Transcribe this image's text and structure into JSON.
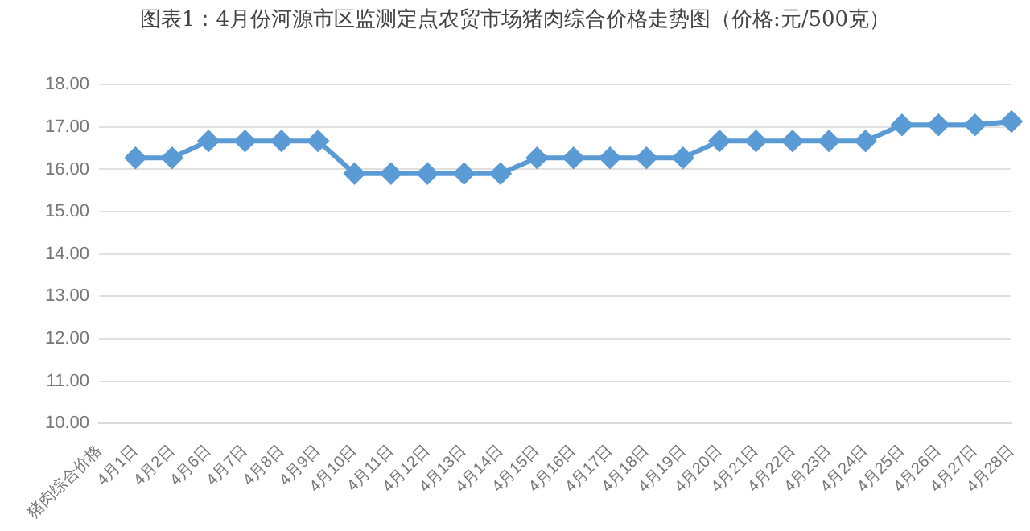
{
  "chart_data": {
    "type": "line",
    "title": "图表1：4月份河源市区监测定点农贸市场猪肉综合价格走势图（价格:元/500克）",
    "categories": [
      "猪肉综合价格",
      "4月1日",
      "4月2日",
      "4月6日",
      "4月7日",
      "4月8日",
      "4月9日",
      "4月10日",
      "4月11日",
      "4月12日",
      "4月13日",
      "4月14日",
      "4月15日",
      "4月16日",
      "4月17日",
      "4月18日",
      "4月19日",
      "4月20日",
      "4月21日",
      "4月22日",
      "4月23日",
      "4月24日",
      "4月25日",
      "4月26日",
      "4月27日",
      "4月28日"
    ],
    "series": [
      {
        "color": "#5b9bd5",
        "values": [
          null,
          16.27,
          16.27,
          16.67,
          16.67,
          16.67,
          16.67,
          15.9,
          15.9,
          15.9,
          15.9,
          15.9,
          16.27,
          16.27,
          16.27,
          16.27,
          16.27,
          16.67,
          16.67,
          16.67,
          16.67,
          16.67,
          17.05,
          17.05,
          17.05,
          17.13
        ]
      }
    ],
    "ylim": [
      10,
      18
    ],
    "yticks": [
      {
        "value": 10,
        "label": "10.00"
      },
      {
        "value": 11,
        "label": "11.00"
      },
      {
        "value": 12,
        "label": "12.00"
      },
      {
        "value": 13,
        "label": "13.00"
      },
      {
        "value": 14,
        "label": "14.00"
      },
      {
        "value": 15,
        "label": "15.00"
      },
      {
        "value": 16,
        "label": "16.00"
      },
      {
        "value": 17,
        "label": "17.00"
      },
      {
        "value": 18,
        "label": "18.00"
      }
    ],
    "grid": "y",
    "marker": "diamond",
    "line_style": "solid",
    "legend": false
  }
}
